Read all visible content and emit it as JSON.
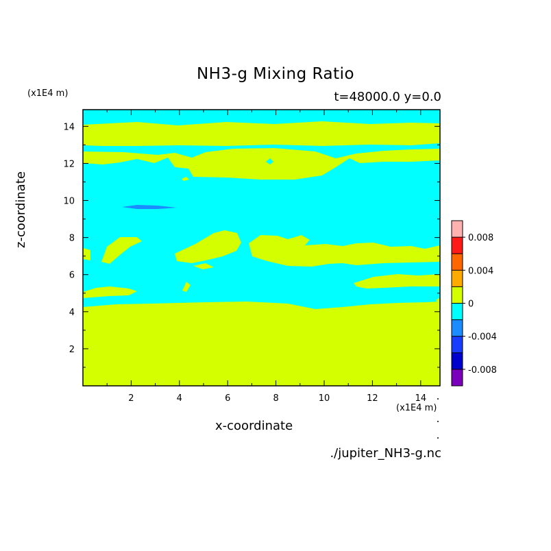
{
  "chart_data": {
    "type": "heatmap",
    "title": "NH3-g Mixing Ratio",
    "subtitle": "t=48000.0 y=0.0",
    "xlabel": "x-coordinate",
    "ylabel": "z-coordinate",
    "x_unit_label": "(x1E4 m)",
    "y_unit_label": "(x1E4 m)",
    "source_label": "./jupiter_NH3-g.nc",
    "xlim": [
      0,
      14.8
    ],
    "ylim": [
      0,
      14.9
    ],
    "x_ticks": [
      2,
      4,
      6,
      8,
      10,
      12,
      14
    ],
    "y_ticks": [
      2,
      4,
      6,
      8,
      10,
      12,
      14
    ],
    "colorbar": {
      "tick_labels": [
        {
          "value": 0.008,
          "label": "0.008"
        },
        {
          "value": 0.004,
          "label": "0.004"
        },
        {
          "value": 0,
          "label": "0"
        },
        {
          "value": -0.004,
          "label": "-0.004"
        },
        {
          "value": -0.008,
          "label": "-0.008"
        }
      ],
      "bands": [
        {
          "from": 0.008,
          "to": 0.01,
          "color": "#ffb0b0"
        },
        {
          "from": 0.006,
          "to": 0.008,
          "color": "#ff1a1a"
        },
        {
          "from": 0.004,
          "to": 0.006,
          "color": "#ff6600"
        },
        {
          "from": 0.002,
          "to": 0.004,
          "color": "#ffaa00"
        },
        {
          "from": 0.0,
          "to": 0.002,
          "color": "#d4ff00"
        },
        {
          "from": -0.002,
          "to": 0.0,
          "color": "#00ffff"
        },
        {
          "from": -0.004,
          "to": -0.002,
          "color": "#1a8cff"
        },
        {
          "from": -0.006,
          "to": -0.004,
          "color": "#1a3cff"
        },
        {
          "from": -0.008,
          "to": -0.006,
          "color": "#0000cc"
        },
        {
          "from": -0.01,
          "to": -0.008,
          "color": "#7a00bb"
        }
      ]
    },
    "regions": [
      {
        "name": "lower-positive-layer",
        "level": "0 to 0.002",
        "z_range": [
          0,
          4.4
        ]
      },
      {
        "name": "negative-band",
        "level": "-0.002 to 0",
        "z_range": [
          4.4,
          11.5
        ]
      },
      {
        "name": "upper-positive-band",
        "level": "0 to 0.002",
        "z_range": [
          11.5,
          12.7
        ]
      },
      {
        "name": "upper-positive-band",
        "level": "0 to 0.002",
        "z_range": [
          13.0,
          14.0
        ]
      },
      {
        "name": "min-pocket",
        "level": "-0.004 to -0.002",
        "x": 3.0,
        "z": 9.6
      }
    ]
  }
}
